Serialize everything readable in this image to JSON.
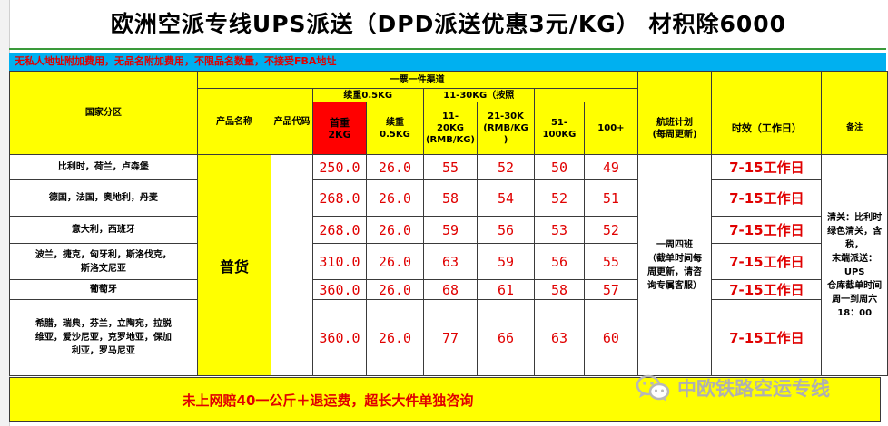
{
  "title": "欧洲空派专线UPS派送（DPD派送优惠3元/KG） 材积除6000",
  "notice": "无私人地址附加费用，无品名附加费用，不限品名数量，不接受FBA地址",
  "headers": {
    "country_zone": "国家分区",
    "channel": "一票一件渠道",
    "product_name": "产品名称",
    "product_code": "产品代码",
    "cont_05": "续重0.5KG",
    "range_11_30": "11-30KG（按照",
    "first_weight": "首重",
    "first_weight_unit": "2KG",
    "cont_weight": "续重",
    "cont_weight_unit": "0.5KG",
    "w11_20": "11-",
    "w11_20b": "20KG",
    "w11_20c": "(RMB/KG)",
    "w21_30": "21-30K",
    "w21_30b": "(RMB/KG",
    "w21_30c": ")",
    "w51_100": "51-",
    "w51_100b": "100KG",
    "w100plus": "100+",
    "flight_plan": "航班计划",
    "flight_plan_sub": "(每周更新)",
    "transit": "时效（工作日）",
    "remarks": "备注"
  },
  "product_type": "普货",
  "schedule": {
    "l1": "一周四班",
    "l2": "（截单时间每",
    "l3": "周更新，请咨",
    "l4": "询专属客服）"
  },
  "remark": {
    "l1": "清关：比利时",
    "l2": "绿色清关，含",
    "l3": "税，",
    "l4": "末端派送：",
    "l5": "UPS",
    "l6": "仓库截单时间",
    "l7": "周一到周六",
    "l8": "18：00"
  },
  "rows": [
    {
      "region_l1": "比利时，荷兰，卢森堡",
      "region_l2": "",
      "region_l3": "",
      "first": "250.0",
      "cont": "26.0",
      "p11_20": "55",
      "p21_30": "52",
      "p51_100": "50",
      "p100": "49",
      "transit": "7-15工作日"
    },
    {
      "region_l1": "德国，法国，奥地利，丹麦",
      "region_l2": "",
      "region_l3": "",
      "first": "268.0",
      "cont": "26.0",
      "p11_20": "58",
      "p21_30": "54",
      "p51_100": "52",
      "p100": "51",
      "transit": "7-15工作日"
    },
    {
      "region_l1": "意大利，西班牙",
      "region_l2": "",
      "region_l3": "",
      "first": "268.0",
      "cont": "26.0",
      "p11_20": "59",
      "p21_30": "56",
      "p51_100": "53",
      "p100": "52",
      "transit": "7-15工作日"
    },
    {
      "region_l1": "波兰，捷克，匈牙利，斯洛伐克，",
      "region_l2": "斯洛文尼亚",
      "region_l3": "",
      "first": "310.0",
      "cont": "26.0",
      "p11_20": "63",
      "p21_30": "59",
      "p51_100": "56",
      "p100": "55",
      "transit": "7-15工作日"
    },
    {
      "region_l1": "葡萄牙",
      "region_l2": "",
      "region_l3": "",
      "first": "360.0",
      "cont": "26.0",
      "p11_20": "68",
      "p21_30": "61",
      "p51_100": "58",
      "p100": "57",
      "transit": "7-15工作日"
    },
    {
      "region_l1": "希腊，瑞典，芬兰，立陶宛，拉脱",
      "region_l2": "维亚，爱沙尼亚，克罗地亚，保加",
      "region_l3": "利亚，罗马尼亚",
      "first": "360.0",
      "cont": "26.0",
      "p11_20": "77",
      "p21_30": "66",
      "p51_100": "63",
      "p100": "60",
      "transit": "7-15工作日"
    }
  ],
  "footer": "未上网赔40一公斤＋退运费，超长大件单独咨询",
  "watermark": "中欧铁路空运专线",
  "colors": {
    "yellow": "#ffff00",
    "red": "#ff0000",
    "notice_bg": "#00b0f0",
    "price_text": "#e00000"
  }
}
